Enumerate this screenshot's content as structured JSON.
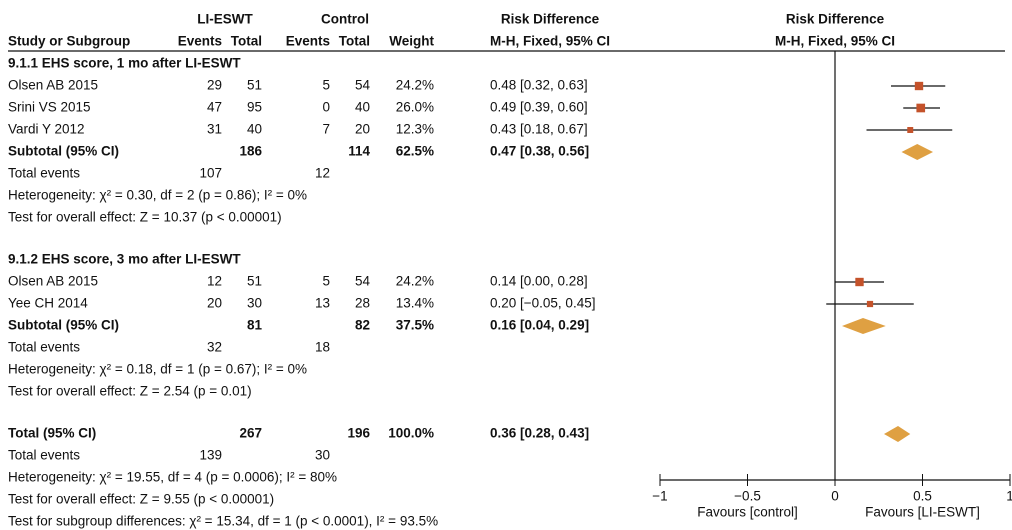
{
  "header": {
    "group1": "LI-ESWT",
    "group2": "Control",
    "rd_title": "Risk Difference",
    "plot_title": "Risk Difference",
    "columns": [
      "Study or Subgroup",
      "Events",
      "Total",
      "Events",
      "Total",
      "Weight",
      "M-H, Fixed, 95% CI"
    ],
    "plot_subtitle": "M-H, Fixed, 95% CI"
  },
  "rows": [
    {
      "style": "heading",
      "cells": [
        "9.1.1 EHS score, 1 mo after LI-ESWT"
      ]
    },
    {
      "style": "study",
      "cells": [
        "Olsen AB 2015",
        "29",
        "51",
        "5",
        "54",
        "24.2%",
        "0.48 [0.32, 0.63]"
      ]
    },
    {
      "style": "study",
      "cells": [
        "Srini VS 2015",
        "47",
        "95",
        "0",
        "40",
        "26.0%",
        "0.49 [0.39, 0.60]"
      ]
    },
    {
      "style": "study",
      "cells": [
        "Vardi Y 2012",
        "31",
        "40",
        "7",
        "20",
        "12.3%",
        "0.43 [0.18, 0.67]"
      ]
    },
    {
      "style": "subtotal",
      "cells": [
        "Subtotal (95% CI)",
        null,
        "186",
        null,
        "114",
        "62.5%",
        "0.47 [0.38, 0.56]"
      ]
    },
    {
      "style": "plain",
      "cells": [
        "Total events",
        "107",
        null,
        "12"
      ]
    },
    {
      "style": "note",
      "cells": [
        "Heterogeneity: χ² = 0.30, df = 2 (p = 0.86); I² = 0%"
      ]
    },
    {
      "style": "note",
      "cells": [
        "Test for overall effect: Z = 10.37 (p < 0.00001)"
      ]
    },
    {
      "style": "heading",
      "cells": [
        "9.1.2 EHS score, 3 mo after LI-ESWT"
      ]
    },
    {
      "style": "study",
      "cells": [
        "Olsen AB 2015",
        "12",
        "51",
        "5",
        "54",
        "24.2%",
        "0.14 [0.00, 0.28]"
      ]
    },
    {
      "style": "study",
      "cells": [
        "Yee CH 2014",
        "20",
        "30",
        "13",
        "28",
        "13.4%",
        "0.20 [−0.05, 0.45]"
      ]
    },
    {
      "style": "subtotal",
      "cells": [
        "Subtotal (95% CI)",
        null,
        "81",
        null,
        "82",
        "37.5%",
        "0.16 [0.04, 0.29]"
      ]
    },
    {
      "style": "plain",
      "cells": [
        "Total events",
        "32",
        null,
        "18"
      ]
    },
    {
      "style": "note",
      "cells": [
        "Heterogeneity: χ² = 0.18, df = 1 (p = 0.67); I² = 0%"
      ]
    },
    {
      "style": "note",
      "cells": [
        "Test for overall effect: Z = 2.54 (p = 0.01)"
      ]
    },
    {
      "style": "total",
      "cells": [
        "Total (95% CI)",
        null,
        "267",
        null,
        "196",
        "100.0%",
        "0.36 [0.28, 0.43]"
      ]
    },
    {
      "style": "plain",
      "cells": [
        "Total events",
        "139",
        null,
        "30"
      ]
    },
    {
      "style": "note",
      "cells": [
        "Heterogeneity: χ² = 19.55, df = 4 (p = 0.0006); I² = 80%"
      ]
    },
    {
      "style": "note",
      "cells": [
        "Test for overall effect: Z = 9.55 (p < 0.00001)"
      ]
    },
    {
      "style": "note",
      "cells": [
        "Test for subgroup differences: χ² = 15.34, df = 1 (p < 0.0001), I² = 93.5%"
      ]
    }
  ],
  "chart_data": {
    "type": "forest",
    "studies": {
      "color": "#c4522a",
      "values": [
        0.48,
        0.49,
        0.43,
        0.14,
        0.2
      ],
      "lower": [
        0.32,
        0.39,
        0.18,
        0.0,
        -0.05
      ],
      "upper": [
        0.63,
        0.6,
        0.67,
        0.28,
        0.45
      ],
      "weights": [
        24.2,
        26.0,
        12.3,
        24.2,
        13.4
      ]
    },
    "pooled": {
      "color": "#dfa042",
      "values": [
        0.47,
        0.16,
        0.36
      ],
      "lower": [
        0.38,
        0.04,
        0.28
      ],
      "upper": [
        0.56,
        0.29,
        0.43
      ]
    },
    "xlim": [
      -1,
      1
    ],
    "xticks": [
      {
        "value": -1,
        "label": "−1"
      },
      {
        "value": -0.5,
        "label": "−0.5"
      },
      0,
      0.5,
      1
    ],
    "xlabel_left": "Favours [control]",
    "xlabel_right": "Favours [LI-ESWT]"
  }
}
